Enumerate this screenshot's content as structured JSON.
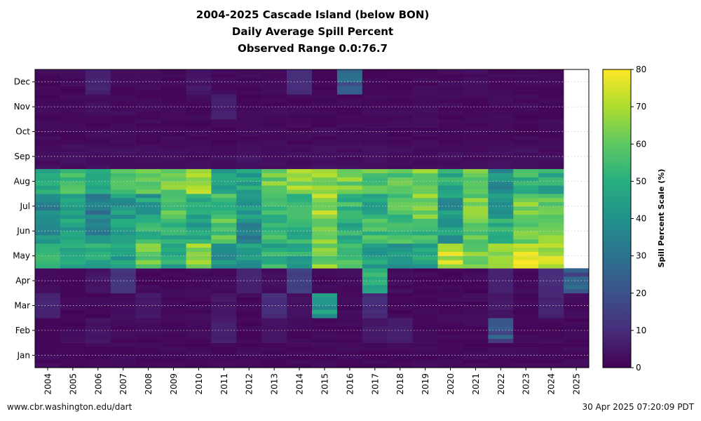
{
  "title_lines": [
    "2004-2025 Cascade Island (below BON)",
    "Daily Average Spill Percent",
    "Observed Range 0.0:76.7"
  ],
  "footer": {
    "left": "www.cbr.washington.edu/dart",
    "right": "30 Apr 2025 07:20:09 PDT"
  },
  "chart_data": {
    "type": "heatmap",
    "title": "2004-2025 Cascade Island (below BON) Daily Average Spill Percent",
    "subtitle": "Observed Range 0.0:76.7",
    "xlabel": "",
    "ylabel": "",
    "colorbar_label": "Spill Percent Scale (%)",
    "colorbar_range": [
      0,
      80
    ],
    "colorbar_ticks": [
      0,
      10,
      20,
      30,
      40,
      50,
      60,
      70,
      80
    ],
    "colormap": "viridis",
    "x": [
      "2004",
      "2005",
      "2006",
      "2007",
      "2008",
      "2009",
      "2010",
      "2011",
      "2012",
      "2013",
      "2014",
      "2015",
      "2016",
      "2017",
      "2018",
      "2019",
      "2020",
      "2021",
      "2022",
      "2023",
      "2024",
      "2025"
    ],
    "y_months": [
      "Jan",
      "Feb",
      "Mar",
      "Apr",
      "May",
      "Jun",
      "Jul",
      "Aug",
      "Sep",
      "Oct",
      "Nov",
      "Dec"
    ],
    "grid": true,
    "no_data_after": "2025-04-30",
    "approx_monthly_mean_spill_percent": {
      "2004": [
        2,
        2,
        8,
        3,
        52,
        38,
        35,
        52,
        3,
        2,
        2,
        2
      ],
      "2005": [
        2,
        2,
        2,
        2,
        50,
        44,
        42,
        54,
        3,
        2,
        2,
        2
      ],
      "2006": [
        2,
        4,
        2,
        5,
        48,
        38,
        33,
        52,
        3,
        2,
        3,
        8
      ],
      "2007": [
        2,
        2,
        3,
        12,
        46,
        45,
        42,
        58,
        3,
        2,
        2,
        2
      ],
      "2008": [
        2,
        2,
        5,
        2,
        62,
        50,
        44,
        62,
        3,
        2,
        2,
        2
      ],
      "2009": [
        2,
        2,
        2,
        2,
        48,
        52,
        60,
        62,
        3,
        2,
        2,
        2
      ],
      "2010": [
        2,
        2,
        2,
        2,
        66,
        46,
        50,
        66,
        3,
        2,
        2,
        5
      ],
      "2011": [
        2,
        7,
        5,
        2,
        42,
        58,
        56,
        48,
        3,
        2,
        7,
        2
      ],
      "2012": [
        2,
        2,
        2,
        8,
        42,
        36,
        42,
        46,
        4,
        2,
        2,
        2
      ],
      "2013": [
        2,
        4,
        10,
        3,
        50,
        54,
        50,
        62,
        3,
        2,
        2,
        2
      ],
      "2014": [
        2,
        2,
        3,
        15,
        48,
        52,
        55,
        66,
        3,
        2,
        2,
        10
      ],
      "2015": [
        2,
        2,
        44,
        2,
        64,
        64,
        68,
        68,
        3,
        2,
        2,
        2
      ],
      "2016": [
        2,
        2,
        2,
        2,
        55,
        50,
        52,
        62,
        3,
        2,
        2,
        25
      ],
      "2017": [
        2,
        5,
        10,
        48,
        46,
        55,
        48,
        58,
        3,
        2,
        2,
        2
      ],
      "2018": [
        2,
        7,
        2,
        3,
        44,
        56,
        56,
        60,
        3,
        2,
        2,
        2
      ],
      "2019": [
        2,
        2,
        2,
        2,
        46,
        52,
        65,
        62,
        3,
        2,
        2,
        2
      ],
      "2020": [
        2,
        2,
        2,
        2,
        72,
        44,
        42,
        50,
        3,
        2,
        2,
        2
      ],
      "2021": [
        2,
        2,
        2,
        2,
        62,
        58,
        62,
        60,
        3,
        2,
        2,
        3
      ],
      "2022": [
        2,
        20,
        5,
        8,
        70,
        52,
        45,
        40,
        3,
        2,
        2,
        2
      ],
      "2023": [
        2,
        2,
        2,
        2,
        76,
        62,
        62,
        52,
        3,
        2,
        2,
        2
      ],
      "2024": [
        2,
        2,
        8,
        10,
        72,
        62,
        58,
        48,
        3,
        2,
        2,
        2
      ],
      "2025": [
        2,
        2,
        2,
        22,
        null,
        null,
        null,
        null,
        null,
        null,
        null,
        null
      ]
    }
  }
}
